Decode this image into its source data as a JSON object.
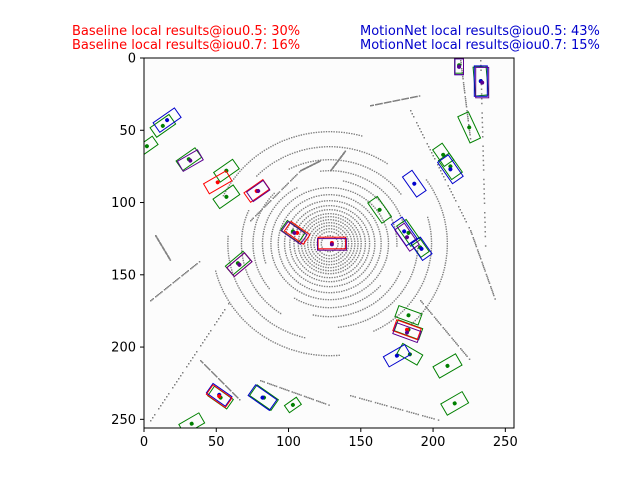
{
  "header": {
    "baseline_iou05": "Baseline local results@iou0.5: 30%",
    "baseline_iou07": "Baseline local results@iou0.7: 16%",
    "motionnet_iou05": "MotionNet local results@iou0.5: 43%",
    "motionnet_iou07": "MotionNet local results@iou0.7: 15%"
  },
  "colors": {
    "baseline": "#ff0000",
    "motionnet": "#0000cc",
    "ground_truth": "#008000",
    "overlap": "#5b0090",
    "lidar": "#808080",
    "background": "#fcfcfc"
  },
  "chart_data": {
    "type": "scatter",
    "title": "",
    "xlabel": "",
    "ylabel": "",
    "xlim": [
      0,
      256
    ],
    "ylim": [
      256,
      0
    ],
    "x_ticks": [
      "0",
      "50",
      "100",
      "150",
      "200",
      "250"
    ],
    "y_ticks": [
      "0",
      "50",
      "100",
      "150",
      "200",
      "250"
    ],
    "grid": false,
    "series": [
      {
        "key": "ground_truth",
        "boxes": [
          {
            "x": 218,
            "y": 5,
            "w": 6,
            "h": 11,
            "a": 0
          },
          {
            "x": 233,
            "y": 16,
            "w": 9,
            "h": 20,
            "a": -5
          },
          {
            "x": 225,
            "y": 48,
            "w": 8,
            "h": 20,
            "a": -25
          },
          {
            "x": 207,
            "y": 67,
            "w": 8,
            "h": 14,
            "a": -35
          },
          {
            "x": 212,
            "y": 75,
            "w": 9,
            "h": 16,
            "a": -35
          },
          {
            "x": 2,
            "y": 61,
            "w": 7,
            "h": 14,
            "a": 55
          },
          {
            "x": 13,
            "y": 47,
            "w": 8,
            "h": 16,
            "a": 55
          },
          {
            "x": 31,
            "y": 70,
            "w": 8,
            "h": 16,
            "a": 55
          },
          {
            "x": 57,
            "y": 78,
            "w": 8,
            "h": 16,
            "a": 55
          },
          {
            "x": 57,
            "y": 96,
            "w": 8,
            "h": 17,
            "a": 55
          },
          {
            "x": 163,
            "y": 105,
            "w": 8,
            "h": 17,
            "a": -35
          },
          {
            "x": 183,
            "y": 121,
            "w": 8,
            "h": 17,
            "a": -35
          },
          {
            "x": 191,
            "y": 131,
            "w": 7,
            "h": 12,
            "a": -35
          },
          {
            "x": 183,
            "y": 178,
            "w": 8,
            "h": 17,
            "a": -70
          },
          {
            "x": 183,
            "y": 188,
            "w": 8,
            "h": 18,
            "a": -70
          },
          {
            "x": 184,
            "y": 205,
            "w": 8,
            "h": 16,
            "a": -60
          },
          {
            "x": 210,
            "y": 213,
            "w": 9,
            "h": 18,
            "a": 60
          },
          {
            "x": 215,
            "y": 239,
            "w": 9,
            "h": 17,
            "a": 60
          },
          {
            "x": 53,
            "y": 235,
            "w": 8,
            "h": 16,
            "a": -55
          },
          {
            "x": 83,
            "y": 235,
            "w": 9,
            "h": 18,
            "a": -55
          },
          {
            "x": 103,
            "y": 120,
            "w": 8,
            "h": 15,
            "a": -55
          },
          {
            "x": 65,
            "y": 142,
            "w": 8,
            "h": 16,
            "a": 50
          },
          {
            "x": 33,
            "y": 253,
            "w": 8,
            "h": 16,
            "a": 60
          },
          {
            "x": 103,
            "y": 240,
            "w": 6,
            "h": 10,
            "a": 55
          }
        ]
      },
      {
        "key": "motionnet",
        "boxes": [
          {
            "x": 218,
            "y": 6,
            "w": 6,
            "h": 11,
            "a": 0
          },
          {
            "x": 233,
            "y": 16,
            "w": 9,
            "h": 21,
            "a": 0
          },
          {
            "x": 16,
            "y": 43,
            "w": 8,
            "h": 18,
            "a": 55
          },
          {
            "x": 187,
            "y": 87,
            "w": 8,
            "h": 17,
            "a": -35
          },
          {
            "x": 212,
            "y": 77,
            "w": 9,
            "h": 18,
            "a": -35
          },
          {
            "x": 192,
            "y": 132,
            "w": 8,
            "h": 14,
            "a": -35
          },
          {
            "x": 180,
            "y": 120,
            "w": 9,
            "h": 18,
            "a": -35
          },
          {
            "x": 175,
            "y": 206,
            "w": 8,
            "h": 17,
            "a": 60
          },
          {
            "x": 82,
            "y": 235,
            "w": 9,
            "h": 18,
            "a": -55
          },
          {
            "x": 52,
            "y": 233,
            "w": 8,
            "h": 16,
            "a": -55
          }
        ]
      },
      {
        "key": "baseline",
        "boxes": [
          {
            "x": 51,
            "y": 86,
            "w": 8,
            "h": 18,
            "a": 60
          },
          {
            "x": 78,
            "y": 92,
            "w": 8,
            "h": 16,
            "a": 55
          },
          {
            "x": 130,
            "y": 128,
            "w": 8,
            "h": 19,
            "a": 90
          },
          {
            "x": 106,
            "y": 121,
            "w": 8,
            "h": 16,
            "a": -55
          },
          {
            "x": 66,
            "y": 143,
            "w": 8,
            "h": 16,
            "a": 50
          },
          {
            "x": 182,
            "y": 188,
            "w": 8,
            "h": 18,
            "a": -70
          },
          {
            "x": 52,
            "y": 234,
            "w": 8,
            "h": 16,
            "a": -55
          }
        ]
      },
      {
        "key": "overlap",
        "boxes": [
          {
            "x": 32,
            "y": 71,
            "w": 8,
            "h": 16,
            "a": 60
          },
          {
            "x": 79,
            "y": 92,
            "w": 8,
            "h": 14,
            "a": 55
          },
          {
            "x": 130,
            "y": 129,
            "w": 8,
            "h": 20,
            "a": 90
          },
          {
            "x": 104,
            "y": 121,
            "w": 8,
            "h": 16,
            "a": -55
          },
          {
            "x": 66,
            "y": 143,
            "w": 8,
            "h": 16,
            "a": 50
          },
          {
            "x": 182,
            "y": 124,
            "w": 8,
            "h": 18,
            "a": -35
          },
          {
            "x": 182,
            "y": 190,
            "w": 8,
            "h": 18,
            "a": -70
          },
          {
            "x": 234,
            "y": 17,
            "w": 9,
            "h": 21,
            "a": 0
          },
          {
            "x": 218,
            "y": 6,
            "w": 6,
            "h": 11,
            "a": 0
          }
        ]
      }
    ]
  }
}
